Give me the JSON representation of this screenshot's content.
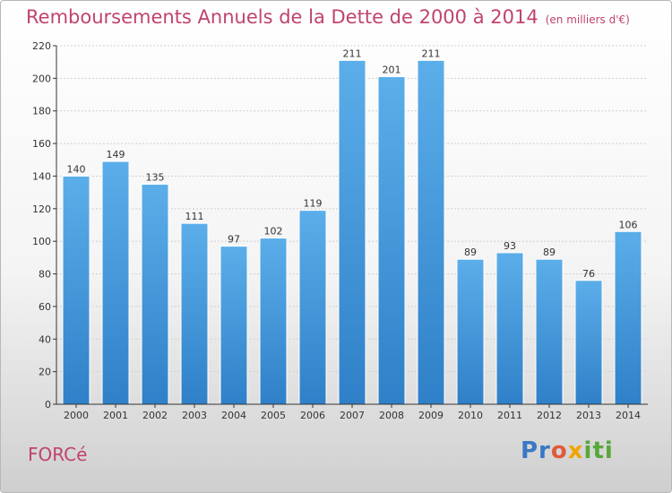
{
  "title": "Remboursements Annuels de la Dette de 2000 à 2014",
  "unit": "(en milliers d'€)",
  "place": "FORCé",
  "logo": {
    "p1": "Pr",
    "p2": "o",
    "p3": "x",
    "p4": "iti"
  },
  "colors": {
    "bar_top": "#5baee9",
    "bar_bottom": "#2f80c8",
    "title": "#c0436e"
  },
  "chart_data": {
    "type": "bar",
    "categories": [
      "2000",
      "2001",
      "2002",
      "2003",
      "2004",
      "2005",
      "2006",
      "2007",
      "2008",
      "2009",
      "2010",
      "2011",
      "2012",
      "2013",
      "2014"
    ],
    "values": [
      140,
      149,
      135,
      111,
      97,
      102,
      119,
      211,
      201,
      211,
      89,
      93,
      89,
      76,
      106
    ],
    "value_labels": [
      "140",
      "149",
      "135",
      "111",
      "97",
      "102",
      "119",
      "211",
      "201",
      "211",
      "89",
      "93",
      "89",
      "76",
      "106"
    ],
    "yticks": [
      "0",
      "20",
      "40",
      "60",
      "80",
      "100",
      "120",
      "140",
      "160",
      "180",
      "200",
      "220"
    ],
    "ylim": [
      0,
      220
    ],
    "grid": true
  }
}
